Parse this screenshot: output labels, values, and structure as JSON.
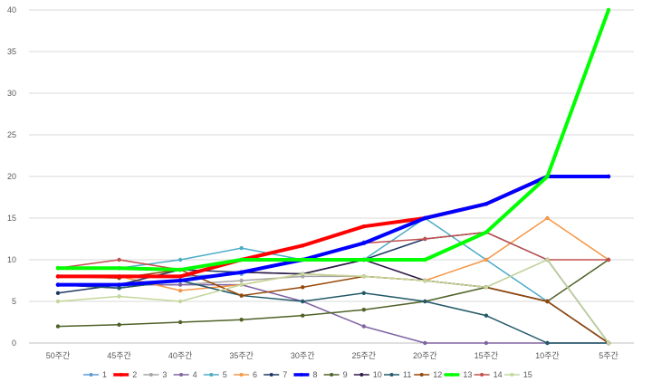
{
  "chart_data": {
    "type": "line",
    "title": "",
    "xlabel": "",
    "ylabel": "",
    "categories": [
      "50주간",
      "45주간",
      "40주간",
      "35주간",
      "30주간",
      "25주간",
      "20주간",
      "15주간",
      "10주간",
      "5주간"
    ],
    "ylim": [
      0,
      40
    ],
    "yticks": [
      0,
      5,
      10,
      15,
      20,
      25,
      30,
      35,
      40
    ],
    "grid": true,
    "legend_position": "bottom",
    "series": [
      {
        "name": "1",
        "color": "#5B9BD5",
        "bold": false,
        "values": [
          8,
          8,
          8,
          8.3,
          10,
          12.1,
          15,
          16.7,
          20,
          20
        ]
      },
      {
        "name": "2",
        "color": "#FF0000",
        "bold": true,
        "values": [
          8,
          8,
          8,
          10,
          11.7,
          14,
          15,
          16.7,
          20,
          20
        ]
      },
      {
        "name": "3",
        "color": "#A5A5A5",
        "bold": false,
        "values": [
          7,
          7,
          7,
          7.5,
          8,
          8,
          7.5,
          6.7,
          10,
          0
        ]
      },
      {
        "name": "4",
        "color": "#8064A2",
        "bold": false,
        "values": [
          7,
          7,
          7,
          7,
          5,
          2,
          0,
          0,
          0,
          0
        ]
      },
      {
        "name": "5",
        "color": "#4BACC6",
        "bold": false,
        "values": [
          9,
          9,
          10,
          11.4,
          10,
          10,
          15,
          10,
          5,
          0
        ]
      },
      {
        "name": "6",
        "color": "#F79646",
        "bold": false,
        "values": [
          8,
          8,
          6.3,
          7,
          8.3,
          8,
          7.5,
          10,
          15,
          10
        ]
      },
      {
        "name": "7",
        "color": "#1F3864",
        "bold": false,
        "values": [
          6,
          7,
          8.8,
          8.5,
          8.3,
          10,
          12.5,
          13.3,
          10,
          0
        ]
      },
      {
        "name": "8",
        "color": "#0000FF",
        "bold": true,
        "values": [
          7,
          7,
          7.5,
          8.5,
          10,
          12,
          15,
          16.7,
          20,
          20
        ]
      },
      {
        "name": "9",
        "color": "#4F6228",
        "bold": false,
        "values": [
          2,
          2.2,
          2.5,
          2.8,
          3.3,
          4,
          5,
          6.7,
          5,
          10
        ]
      },
      {
        "name": "10",
        "color": "#2E1A47",
        "bold": false,
        "values": [
          7,
          6.6,
          7.5,
          8.5,
          8.3,
          10,
          7.5,
          6.7,
          5,
          0
        ]
      },
      {
        "name": "11",
        "color": "#215968",
        "bold": false,
        "values": [
          7,
          6.6,
          7.5,
          5.7,
          5,
          6,
          5,
          3.3,
          0,
          0
        ]
      },
      {
        "name": "12",
        "color": "#974706",
        "bold": false,
        "values": [
          8,
          7.8,
          8.8,
          5.7,
          6.7,
          8,
          7.5,
          6.7,
          5,
          0
        ]
      },
      {
        "name": "13",
        "color": "#00FF00",
        "bold": true,
        "values": [
          9,
          9,
          8.8,
          10,
          10,
          10,
          10,
          13.3,
          20,
          40
        ]
      },
      {
        "name": "14",
        "color": "#C0504D",
        "bold": false,
        "values": [
          9,
          10,
          8.8,
          10,
          10,
          12,
          12.5,
          13.3,
          10,
          10
        ]
      },
      {
        "name": "15",
        "color": "#C3D69B",
        "bold": false,
        "values": [
          5,
          5.6,
          5,
          7,
          8.3,
          8,
          7.5,
          6.7,
          10,
          0
        ]
      }
    ]
  }
}
